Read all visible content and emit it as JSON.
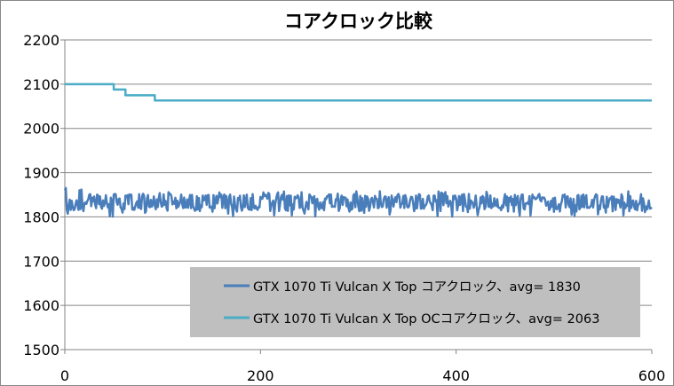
{
  "chart_data": {
    "type": "line",
    "title": "コアクロック比較",
    "xlabel": "",
    "ylabel": "",
    "xlim": [
      0,
      600
    ],
    "ylim": [
      1500,
      2200
    ],
    "x_ticks": [
      0,
      200,
      400,
      600
    ],
    "y_ticks": [
      1500,
      1600,
      1700,
      1800,
      1900,
      2000,
      2100,
      2200
    ],
    "grid": "horizontal",
    "legend_position": "bottom-right",
    "legend_background": "#bfbfbf",
    "series": [
      {
        "name": "GTX 1070 Ti Vulcan X Top コアクロック、avg= 1830",
        "color": "#4a7ebb",
        "style": "noisy",
        "seed": 7,
        "x_range": [
          0,
          600
        ],
        "base": 1830,
        "min": 1785,
        "max": 1886,
        "samples": 600
      },
      {
        "name": "GTX 1070 Ti Vulcan X Top OCコアクロック、avg= 2063",
        "color": "#4bacc6",
        "style": "step",
        "points": [
          [
            0,
            2100
          ],
          [
            50,
            2100
          ],
          [
            50,
            2088
          ],
          [
            62,
            2088
          ],
          [
            62,
            2075
          ],
          [
            92,
            2075
          ],
          [
            92,
            2063
          ],
          [
            600,
            2063
          ]
        ]
      }
    ]
  }
}
